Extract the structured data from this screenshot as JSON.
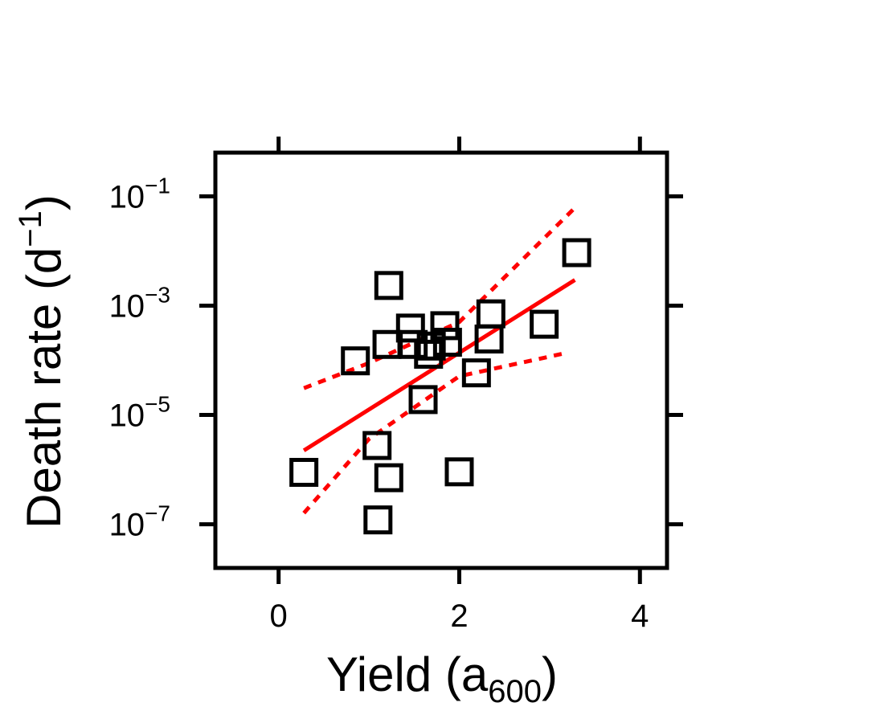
{
  "chart_data": {
    "type": "scatter",
    "title": "",
    "xlabel": {
      "main": "Yield (a",
      "subscript": "600",
      "close": ")"
    },
    "ylabel": {
      "main": "Death rate (d",
      "superscript": "−1",
      "close": ")"
    },
    "xlim": [
      -0.7,
      4.3
    ],
    "ylim_log10": [
      -7.8,
      -0.2
    ],
    "y_scale": "log",
    "grid": false,
    "x_ticks": [
      {
        "value": 0,
        "label": "0"
      },
      {
        "value": 2,
        "label": "2"
      },
      {
        "value": 4,
        "label": "4"
      }
    ],
    "y_ticks": [
      {
        "value": 0.1,
        "base": "10",
        "exponent": "−1"
      },
      {
        "value": 0.001,
        "base": "10",
        "exponent": "−3"
      },
      {
        "value": 1e-05,
        "base": "10",
        "exponent": "−5"
      },
      {
        "value": 1e-07,
        "base": "10",
        "exponent": "−7"
      }
    ],
    "points": [
      {
        "x": 0.28,
        "y": 8.9e-07
      },
      {
        "x": 0.85,
        "y": 9.77e-05
      },
      {
        "x": 1.09,
        "y": 2.76e-06
      },
      {
        "x": 1.1,
        "y": 1.2e-07
      },
      {
        "x": 1.22,
        "y": 7.1e-07
      },
      {
        "x": 1.2,
        "y": 0.000195
      },
      {
        "x": 1.22,
        "y": 0.00234
      },
      {
        "x": 1.46,
        "y": 0.000389
      },
      {
        "x": 1.49,
        "y": 0.000195
      },
      {
        "x": 1.6,
        "y": 1.91e-05
      },
      {
        "x": 1.66,
        "y": 0.000129
      },
      {
        "x": 1.69,
        "y": 0.000182
      },
      {
        "x": 1.84,
        "y": 0.00043
      },
      {
        "x": 1.87,
        "y": 0.000214
      },
      {
        "x": 2.0,
        "y": 9.1e-07
      },
      {
        "x": 2.19,
        "y": 5.89e-05
      },
      {
        "x": 2.33,
        "y": 0.000245
      },
      {
        "x": 2.35,
        "y": 0.000708
      },
      {
        "x": 2.94,
        "y": 0.000457
      },
      {
        "x": 3.3,
        "y": 0.00933
      }
    ],
    "fit_line": {
      "x": [
        0.28,
        3.28
      ],
      "y": [
        2.24e-06,
        0.00295
      ],
      "color": "#ff0000",
      "style": "solid"
    },
    "ci_upper": {
      "x": [
        0.28,
        1.0,
        2.0,
        3.28
      ],
      "y": [
        3.09e-05,
        8.91e-05,
        0.000501,
        0.0617
      ],
      "color": "#ff0000",
      "style": "dotted"
    },
    "ci_lower": {
      "x": [
        0.28,
        1.0,
        2.0,
        3.2
      ],
      "y": [
        1.6e-07,
        3.63e-06,
        5.12e-05,
        0.000138
      ],
      "color": "#ff0000",
      "style": "dotted"
    },
    "colors": {
      "points": "#000000",
      "fit": "#ff0000",
      "axes": "#000000"
    }
  }
}
